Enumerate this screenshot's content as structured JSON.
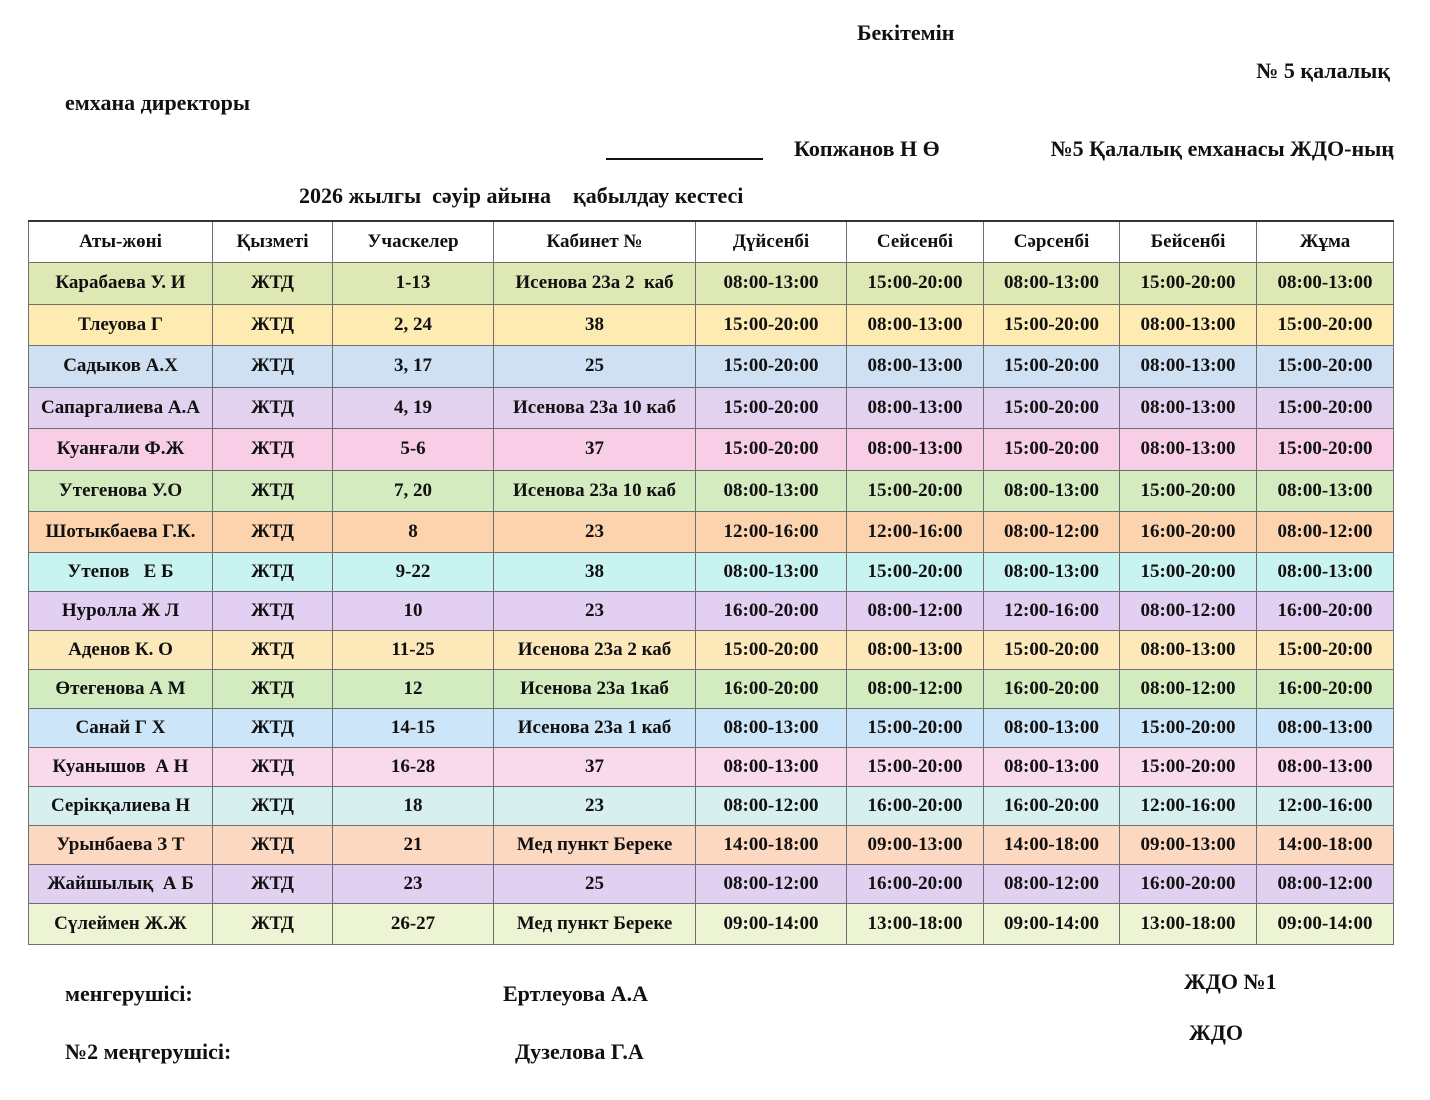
{
  "header": {
    "approve": "Бекітемін",
    "clinic_line1": "№ 5  қалалық",
    "clinic_line2": "емхана директоры",
    "director_name": "Копжанов Н Ө",
    "org_line": "№5 Қалалық емханасы ЖДО-ның",
    "title": "2026 жылгы  сәуір айына    қабылдау кестесі"
  },
  "table": {
    "columns": [
      "Аты-жөні",
      "Қызметі",
      "Учаскелер",
      "Кабинет №",
      "Дүйсенбі",
      "Сейсенбі",
      "Сәрсенбі",
      "Бейсенбі",
      "Жұма"
    ],
    "rows": [
      {
        "name": "Карабаева У. И",
        "role": "ЖТД",
        "area": "1-13",
        "room": "Исенова 23а 2  каб",
        "mon": "08:00-13:00",
        "tue": "15:00-20:00",
        "wed": "08:00-13:00",
        "thu": "15:00-20:00",
        "fri": "08:00-13:00",
        "color": "#dde8b4"
      },
      {
        "name": "Тлеуова Г",
        "role": "ЖТД",
        "area": "2, 24",
        "room": "38",
        "mon": "15:00-20:00",
        "tue": "08:00-13:00",
        "wed": "15:00-20:00",
        "thu": "08:00-13:00",
        "fri": "15:00-20:00",
        "color": "#fdebb2"
      },
      {
        "name": "Садыков А.Х",
        "role": "ЖТД",
        "area": "3, 17",
        "room": "25",
        "mon": "15:00-20:00",
        "tue": "08:00-13:00",
        "wed": "15:00-20:00",
        "thu": "08:00-13:00",
        "fri": "15:00-20:00",
        "color": "#cfe0f3"
      },
      {
        "name": "Сапаргалиева А.А",
        "role": "ЖТД",
        "area": "4, 19",
        "room": "Исенова 23а 10 каб",
        "mon": "15:00-20:00",
        "tue": "08:00-13:00",
        "wed": "15:00-20:00",
        "thu": "08:00-13:00",
        "fri": "15:00-20:00",
        "color": "#e2d2f0"
      },
      {
        "name": "Куанғали Ф.Ж",
        "role": "ЖТД",
        "area": "5-6",
        "room": "37",
        "mon": "15:00-20:00",
        "tue": "08:00-13:00",
        "wed": "15:00-20:00",
        "thu": "08:00-13:00",
        "fri": "15:00-20:00",
        "color": "#f8cde6"
      },
      {
        "name": "Утегенова У.О",
        "role": "ЖТД",
        "area": "7, 20",
        "room": "Исенова 23а 10 каб",
        "mon": "08:00-13:00",
        "tue": "15:00-20:00",
        "wed": "08:00-13:00",
        "thu": "15:00-20:00",
        "fri": "08:00-13:00",
        "color": "#d4ebc0"
      },
      {
        "name": "Шотыкбаева Г.К.",
        "role": "ЖТД",
        "area": "8",
        "room": "23",
        "mon": "12:00-16:00",
        "tue": "12:00-16:00",
        "wed": "08:00-12:00",
        "thu": "16:00-20:00",
        "fri": "08:00-12:00",
        "color": "#fdd3ae"
      },
      {
        "name": "Утепов   Е Б",
        "role": "ЖТД",
        "area": "9-22",
        "room": "38",
        "mon": "08:00-13:00",
        "tue": "15:00-20:00",
        "wed": "08:00-13:00",
        "thu": "15:00-20:00",
        "fri": "08:00-13:00",
        "color": "#c8f3f1"
      },
      {
        "name": "Нуролла Ж Л",
        "role": "ЖТД",
        "area": "10",
        "room": "23",
        "mon": "16:00-20:00",
        "tue": "08:00-12:00",
        "wed": "12:00-16:00",
        "thu": "08:00-12:00",
        "fri": "16:00-20:00",
        "color": "#e3cff2"
      },
      {
        "name": "Аденов К. О",
        "role": "ЖТД",
        "area": "11-25",
        "room": "Исенова 23а 2 каб",
        "mon": "15:00-20:00",
        "tue": "08:00-13:00",
        "wed": "15:00-20:00",
        "thu": "08:00-13:00",
        "fri": "15:00-20:00",
        "color": "#fde8ba"
      },
      {
        "name": "Өтегенова А М",
        "role": "ЖТД",
        "area": "12",
        "room": "Исенова 23а 1каб",
        "mon": "16:00-20:00",
        "tue": "08:00-12:00",
        "wed": "16:00-20:00",
        "thu": "08:00-12:00",
        "fri": "16:00-20:00",
        "color": "#d2ecbf"
      },
      {
        "name": "Санай Г Х",
        "role": "ЖТД",
        "area": "14-15",
        "room": "Исенова 23а 1 каб",
        "mon": "08:00-13:00",
        "tue": "15:00-20:00",
        "wed": "08:00-13:00",
        "thu": "15:00-20:00",
        "fri": "08:00-13:00",
        "color": "#cde5f8"
      },
      {
        "name": "Куанышов  А Н",
        "role": "ЖТД",
        "area": "16-28",
        "room": "37",
        "mon": "08:00-13:00",
        "tue": "15:00-20:00",
        "wed": "08:00-13:00",
        "thu": "15:00-20:00",
        "fri": "08:00-13:00",
        "color": "#f9d9ec"
      },
      {
        "name": "Серікқалиева Н",
        "role": "ЖТД",
        "area": "18",
        "room": "23",
        "mon": "08:00-12:00",
        "tue": "16:00-20:00",
        "wed": "16:00-20:00",
        "thu": "12:00-16:00",
        "fri": "12:00-16:00",
        "color": "#d8eff0"
      },
      {
        "name": "Урынбаева З Т",
        "role": "ЖТД",
        "area": "21",
        "room": "Мед пункт Береке",
        "mon": "14:00-18:00",
        "tue": "09:00-13:00",
        "wed": "14:00-18:00",
        "thu": "09:00-13:00",
        "fri": "14:00-18:00",
        "color": "#fdd8c1"
      },
      {
        "name": "Жайшылық  А Б",
        "role": "ЖТД",
        "area": "23",
        "room": "25",
        "mon": "08:00-12:00",
        "tue": "16:00-20:00",
        "wed": "08:00-12:00",
        "thu": "16:00-20:00",
        "fri": "08:00-12:00",
        "color": "#e2d0f1"
      },
      {
        "name": "Сүлеймен Ж.Ж",
        "role": "ЖТД",
        "area": "26-27",
        "room": "Мед пункт Береке",
        "mon": "09:00-14:00",
        "tue": "13:00-18:00",
        "wed": "09:00-14:00",
        "thu": "13:00-18:00",
        "fri": "09:00-14:00",
        "color": "#ecf4d3"
      }
    ]
  },
  "footer": {
    "head1_label": "менгерушісі:",
    "head1_name": "Ертлеуова А.А",
    "head1_org": "ЖДО №1",
    "head2_label": "№2 меңгерушісі:",
    "head2_name": "Дузелова Г.А",
    "head2_org": "ЖДО"
  }
}
